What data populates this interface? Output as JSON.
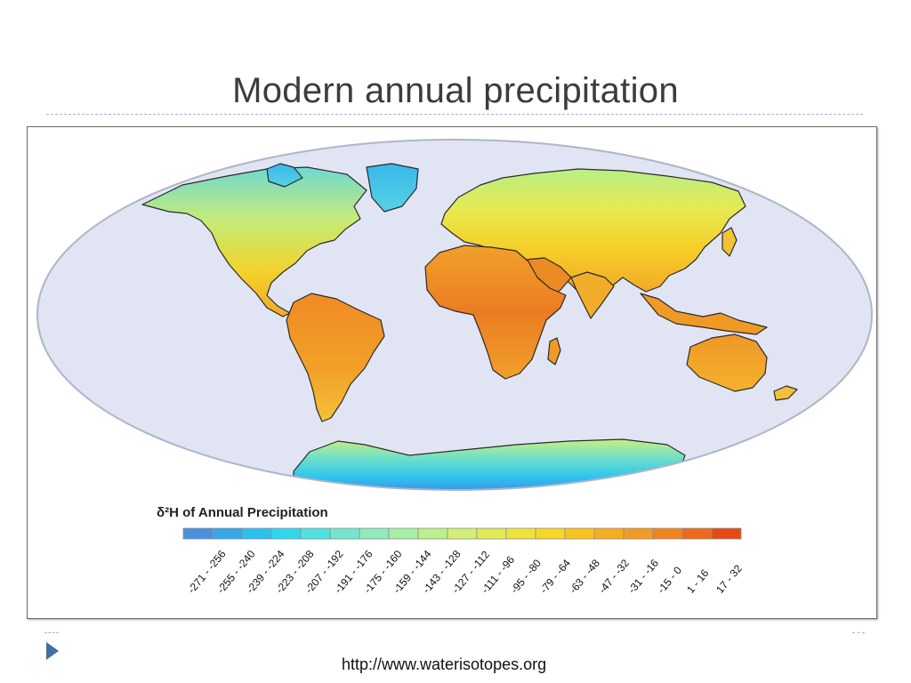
{
  "slide": {
    "title": "Modern annual precipitation",
    "source_text": "http://www.waterisotopes.org"
  },
  "map": {
    "legend_title": "δ²H of Annual Precipitation",
    "colors": {
      "ocean": "#e1e4f3",
      "ocean_edge": "#aeb6c8",
      "coast": "#2a2a2a"
    },
    "legend": [
      {
        "label": "-271 - -256",
        "color": "#4a90e2"
      },
      {
        "label": "-255 - -240",
        "color": "#3aa6ea"
      },
      {
        "label": "-239 - -224",
        "color": "#2cc0ef"
      },
      {
        "label": "-223 - -208",
        "color": "#2fd7ee"
      },
      {
        "label": "-207 - -192",
        "color": "#4fe2e2"
      },
      {
        "label": "-191 - -176",
        "color": "#72e6cf"
      },
      {
        "label": "-175 - -160",
        "color": "#8eecbc"
      },
      {
        "label": "-159 - -144",
        "color": "#a4efa5"
      },
      {
        "label": "-143 - -128",
        "color": "#bcf08c"
      },
      {
        "label": "-127 - -112",
        "color": "#d2ef73"
      },
      {
        "label": "-111 - -96",
        "color": "#e2ea55"
      },
      {
        "label": "-95 - -80",
        "color": "#efe33b"
      },
      {
        "label": "-79 - -64",
        "color": "#f6d626"
      },
      {
        "label": "-63 - -48",
        "color": "#f8c31f"
      },
      {
        "label": "-47 - -32",
        "color": "#f6ad1f"
      },
      {
        "label": "-31 - -16",
        "color": "#f39a22"
      },
      {
        "label": "-15 - 0",
        "color": "#ef8422"
      },
      {
        "label": "1 - 16",
        "color": "#eb6a1e"
      },
      {
        "label": "17 - 32",
        "color": "#e54a14"
      }
    ]
  }
}
